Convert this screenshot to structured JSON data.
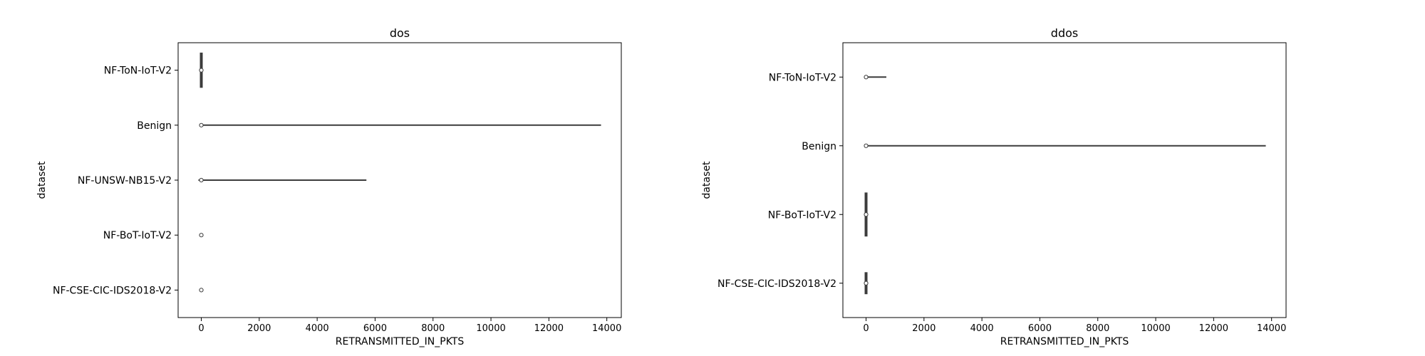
{
  "chart_data": [
    {
      "type": "violin",
      "orientation": "horizontal",
      "title": "dos",
      "xlabel": "RETRANSMITTED_IN_PKTS",
      "ylabel": "dataset",
      "xlim": [
        -800,
        14500
      ],
      "xticks": [
        0,
        2000,
        4000,
        6000,
        8000,
        10000,
        12000,
        14000
      ],
      "categories": [
        "NF-ToN-IoT-V2",
        "Benign",
        "NF-UNSW-NB15-V2",
        "NF-BoT-IoT-V2",
        "NF-CSE-CIC-IDS2018-V2"
      ],
      "series": [
        {
          "category": "NF-ToN-IoT-V2",
          "min": 0,
          "max": 0,
          "median": 0,
          "spread": 0.4
        },
        {
          "category": "Benign",
          "min": 0,
          "max": 13800,
          "median": 0,
          "spread": 0.03
        },
        {
          "category": "NF-UNSW-NB15-V2",
          "min": -100,
          "max": 5700,
          "median": 0,
          "spread": 0.03
        },
        {
          "category": "NF-BoT-IoT-V2",
          "min": 0,
          "max": 0,
          "median": 0,
          "spread": 0
        },
        {
          "category": "NF-CSE-CIC-IDS2018-V2",
          "min": 0,
          "max": 0,
          "median": 0,
          "spread": 0
        }
      ],
      "grid": false,
      "legend": "none"
    },
    {
      "type": "violin",
      "orientation": "horizontal",
      "title": "ddos",
      "xlabel": "RETRANSMITTED_IN_PKTS",
      "ylabel": "dataset",
      "xlim": [
        -800,
        14500
      ],
      "xticks": [
        0,
        2000,
        4000,
        6000,
        8000,
        10000,
        12000,
        14000
      ],
      "categories": [
        "NF-ToN-IoT-V2",
        "Benign",
        "NF-BoT-IoT-V2",
        "NF-CSE-CIC-IDS2018-V2"
      ],
      "series": [
        {
          "category": "NF-ToN-IoT-V2",
          "min": 0,
          "max": 700,
          "median": 0,
          "spread": 0.03
        },
        {
          "category": "Benign",
          "min": 0,
          "max": 13800,
          "median": 0,
          "spread": 0.03
        },
        {
          "category": "NF-BoT-IoT-V2",
          "min": 0,
          "max": 0,
          "median": 0,
          "spread": 0.4
        },
        {
          "category": "NF-CSE-CIC-IDS2018-V2",
          "min": 0,
          "max": 0,
          "median": 0,
          "spread": 0.2
        }
      ],
      "grid": false,
      "legend": "none"
    }
  ]
}
